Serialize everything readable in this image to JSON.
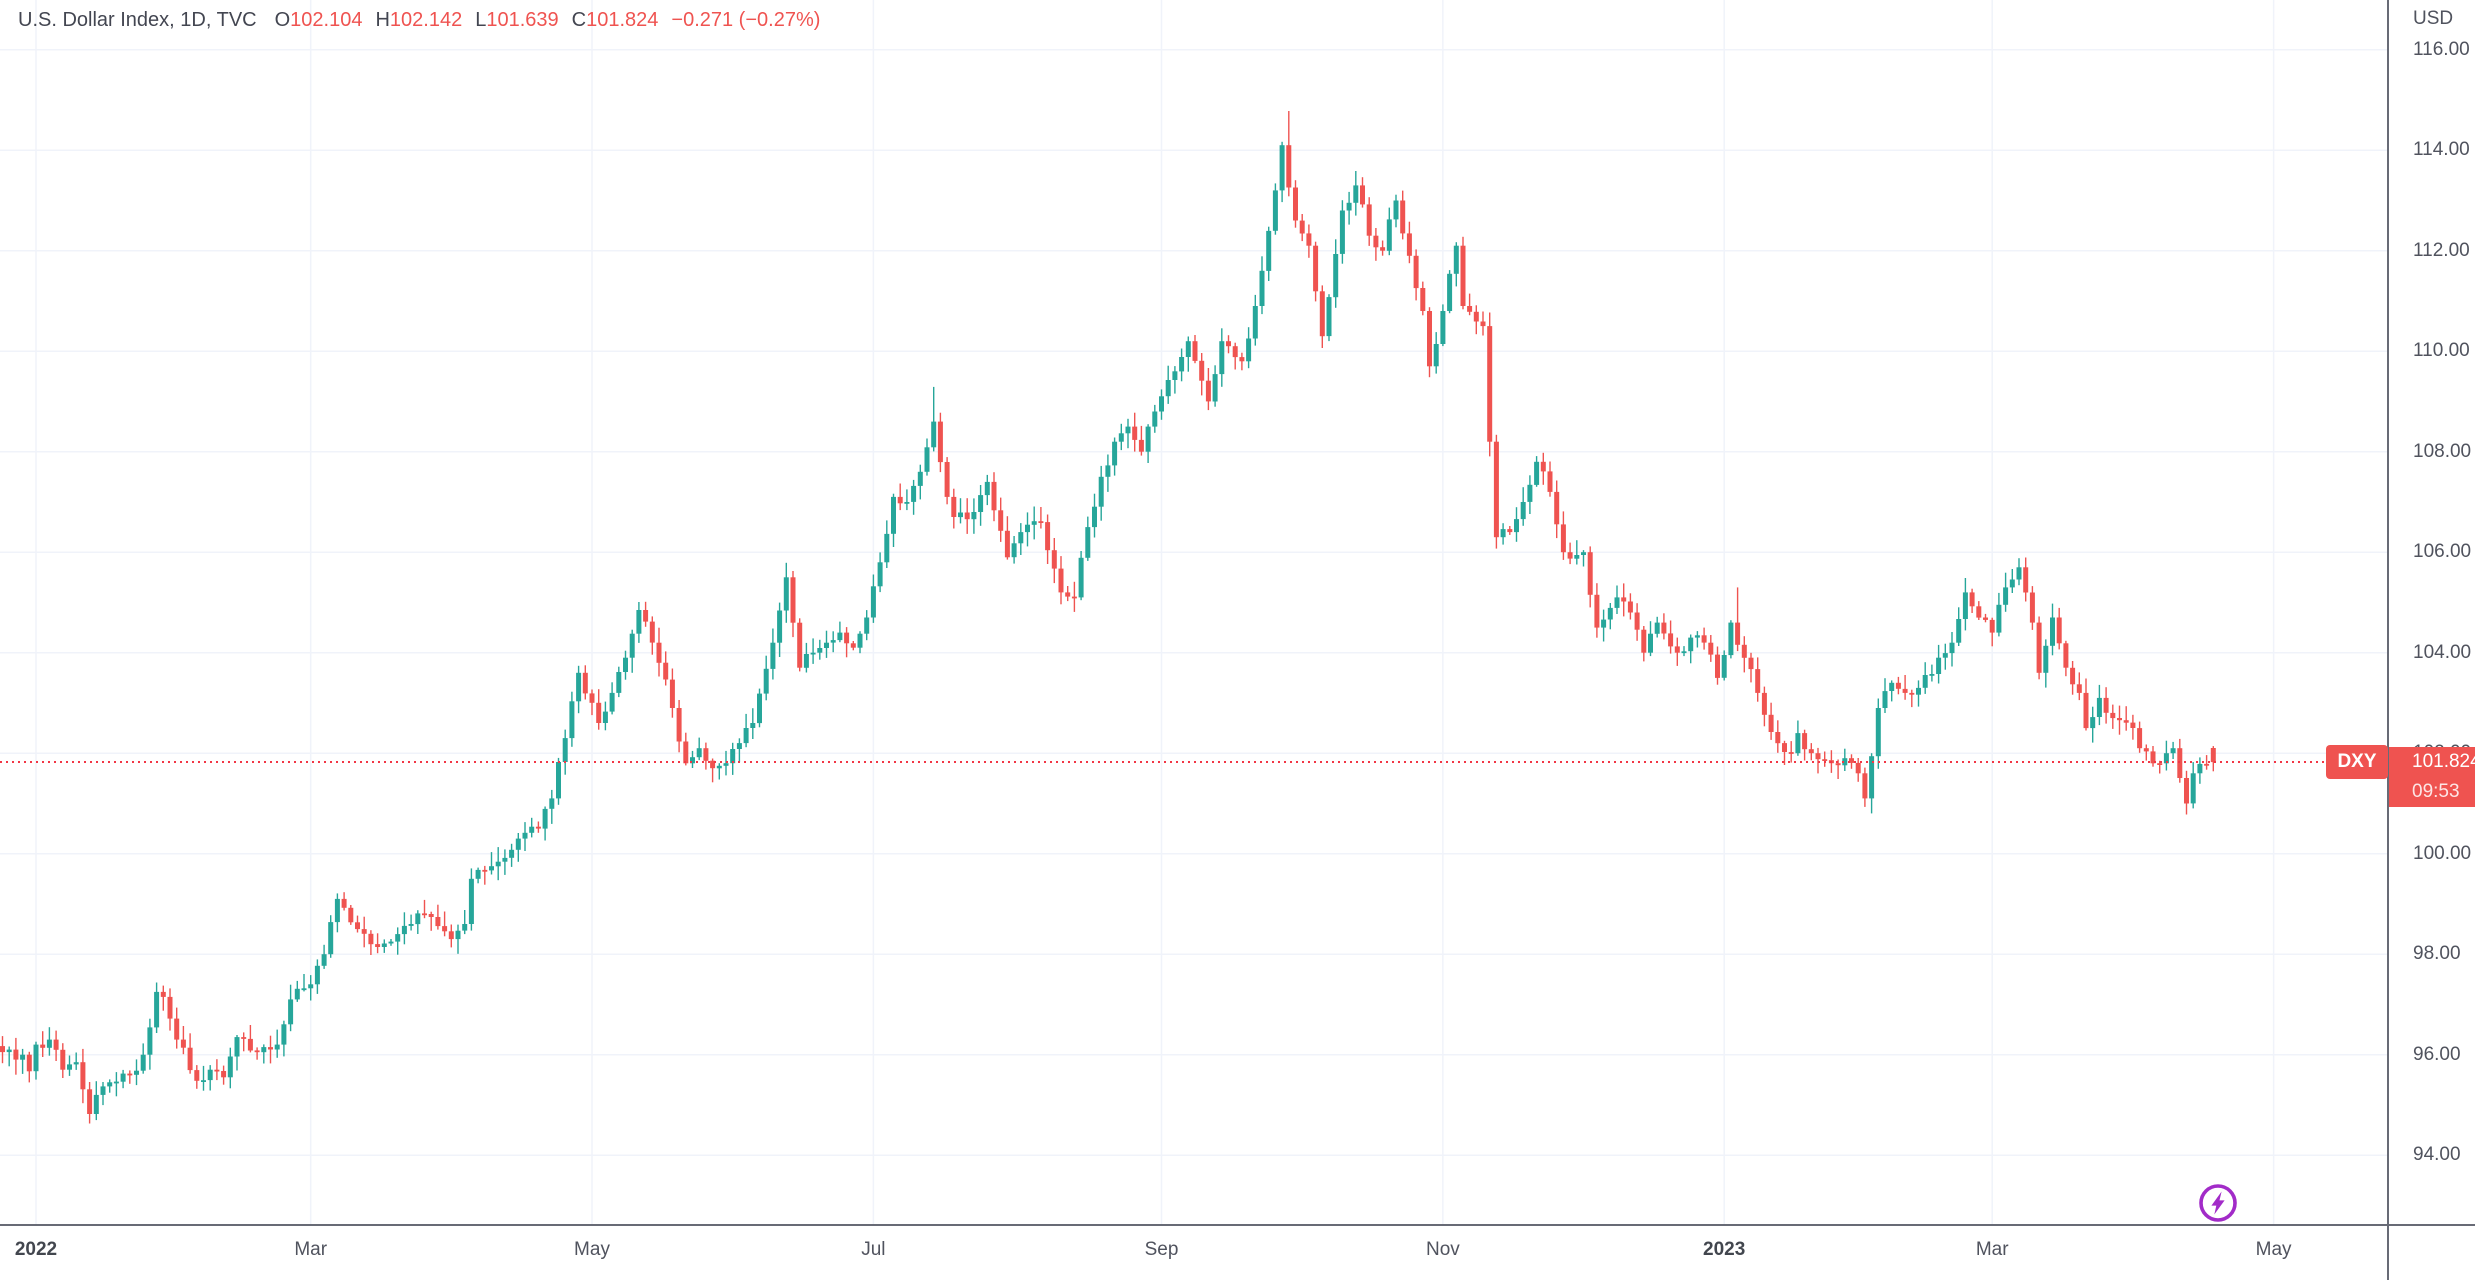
{
  "legend": {
    "title": "U.S. Dollar Index, 1D, TVC",
    "ohlc": [
      {
        "label": "O",
        "value": "102.104"
      },
      {
        "label": "H",
        "value": "102.142"
      },
      {
        "label": "L",
        "value": "101.639"
      },
      {
        "label": "C",
        "value": "101.824"
      }
    ],
    "change": "−0.271 (−0.27%)"
  },
  "price_axis": {
    "currency_label": "USD",
    "tick_values": [
      116,
      114,
      112,
      110,
      108,
      106,
      104,
      102,
      100,
      98,
      96,
      94
    ],
    "price_label": {
      "symbol": "DXY",
      "price": "101.824",
      "countdown": "09:53"
    }
  },
  "time_axis": {
    "ticks": [
      {
        "label": "2022",
        "day": 0,
        "bold": true
      },
      {
        "label": "Mar",
        "day": 41
      },
      {
        "label": "May",
        "day": 83
      },
      {
        "label": "Jul",
        "day": 125
      },
      {
        "label": "Sep",
        "day": 168
      },
      {
        "label": "Nov",
        "day": 210
      },
      {
        "label": "2023",
        "day": 252,
        "bold": true
      },
      {
        "label": "Mar",
        "day": 292
      },
      {
        "label": "May",
        "day": 334
      }
    ]
  },
  "chart_data": {
    "type": "candlestick",
    "title": "U.S. Dollar Index",
    "interval": "1D",
    "exchange": "TVC",
    "currency": "USD",
    "grid": true,
    "xlim": [
      -5.37,
      350.93
    ],
    "ylim": [
      92.63,
      116.99
    ],
    "grid_step_price": 2,
    "last_price_line": 101.824,
    "last_candle": {
      "day": 325,
      "open": 102.104,
      "high": 102.142,
      "low": 101.639,
      "close": 101.824
    },
    "close_anchors": [
      [
        -5,
        96.05
      ],
      [
        -4,
        96.1
      ],
      [
        -3,
        95.9
      ],
      [
        -2,
        96.0
      ],
      [
        -1,
        95.67
      ],
      [
        0,
        96.2
      ],
      [
        2,
        96.3
      ],
      [
        4,
        95.7
      ],
      [
        6,
        95.85
      ],
      [
        8,
        94.82
      ],
      [
        9,
        95.2
      ],
      [
        11,
        95.45
      ],
      [
        14,
        95.6
      ],
      [
        16,
        96.0
      ],
      [
        18,
        97.25
      ],
      [
        19,
        97.15
      ],
      [
        21,
        96.3
      ],
      [
        24,
        95.48
      ],
      [
        26,
        95.7
      ],
      [
        28,
        95.55
      ],
      [
        30,
        96.35
      ],
      [
        33,
        96.05
      ],
      [
        36,
        96.2
      ],
      [
        38,
        97.1
      ],
      [
        41,
        97.4
      ],
      [
        43,
        98.0
      ],
      [
        45,
        99.1
      ],
      [
        48,
        98.5
      ],
      [
        50,
        98.2
      ],
      [
        53,
        98.25
      ],
      [
        56,
        98.6
      ],
      [
        58,
        98.8
      ],
      [
        62,
        98.3
      ],
      [
        64,
        98.6
      ],
      [
        65,
        99.5
      ],
      [
        68,
        99.75
      ],
      [
        72,
        100.3
      ],
      [
        75,
        100.5
      ],
      [
        77,
        101.1
      ],
      [
        79,
        102.3
      ],
      [
        81,
        103.6
      ],
      [
        84,
        102.6
      ],
      [
        86,
        103.2
      ],
      [
        88,
        103.9
      ],
      [
        90,
        104.85
      ],
      [
        92,
        104.2
      ],
      [
        93,
        103.8
      ],
      [
        95,
        102.9
      ],
      [
        97,
        101.8
      ],
      [
        99,
        102.1
      ],
      [
        101,
        101.7
      ],
      [
        103,
        101.8
      ],
      [
        105,
        102.2
      ],
      [
        107,
        102.6
      ],
      [
        110,
        104.2
      ],
      [
        112,
        105.5
      ],
      [
        114,
        103.7
      ],
      [
        116,
        104.0
      ],
      [
        118,
        104.2
      ],
      [
        120,
        104.4
      ],
      [
        122,
        104.1
      ],
      [
        124,
        104.7
      ],
      [
        126,
        105.8
      ],
      [
        128,
        107.1
      ],
      [
        130,
        107.0
      ],
      [
        132,
        107.6
      ],
      [
        134,
        108.6
      ],
      [
        136,
        107.1
      ],
      [
        137,
        106.7
      ],
      [
        140,
        106.8
      ],
      [
        142,
        107.4
      ],
      [
        145,
        105.9
      ],
      [
        147,
        106.4
      ],
      [
        150,
        106.6
      ],
      [
        153,
        105.2
      ],
      [
        155,
        105.1
      ],
      [
        157,
        106.5
      ],
      [
        159,
        107.5
      ],
      [
        161,
        108.2
      ],
      [
        163,
        108.5
      ],
      [
        165,
        108.0
      ],
      [
        167,
        108.8
      ],
      [
        170,
        109.6
      ],
      [
        172,
        110.2
      ],
      [
        175,
        109.0
      ],
      [
        177,
        110.2
      ],
      [
        180,
        109.8
      ],
      [
        182,
        110.9
      ],
      [
        183,
        111.6
      ],
      [
        185,
        113.2
      ],
      [
        186,
        114.1
      ],
      [
        188,
        112.6
      ],
      [
        190,
        112.1
      ],
      [
        192,
        110.3
      ],
      [
        195,
        112.8
      ],
      [
        197,
        113.3
      ],
      [
        199,
        112.3
      ],
      [
        201,
        112.0
      ],
      [
        203,
        113.0
      ],
      [
        205,
        111.9
      ],
      [
        207,
        110.8
      ],
      [
        208,
        109.7
      ],
      [
        210,
        110.8
      ],
      [
        212,
        112.1
      ],
      [
        213,
        110.9
      ],
      [
        216,
        110.5
      ],
      [
        217,
        108.2
      ],
      [
        218,
        106.3
      ],
      [
        220,
        106.4
      ],
      [
        222,
        107.0
      ],
      [
        224,
        107.8
      ],
      [
        226,
        107.2
      ],
      [
        228,
        106.0
      ],
      [
        231,
        106.0
      ],
      [
        233,
        104.5
      ],
      [
        236,
        105.1
      ],
      [
        238,
        104.8
      ],
      [
        240,
        104.0
      ],
      [
        242,
        104.6
      ],
      [
        245,
        104.0
      ],
      [
        247,
        104.3
      ],
      [
        249,
        104.2
      ],
      [
        251,
        103.5
      ],
      [
        253,
        104.6
      ],
      [
        255,
        103.9
      ],
      [
        257,
        103.2
      ],
      [
        260,
        102.2
      ],
      [
        262,
        102.0
      ],
      [
        263,
        102.4
      ],
      [
        265,
        102.0
      ],
      [
        268,
        101.8
      ],
      [
        270,
        101.9
      ],
      [
        272,
        101.6
      ],
      [
        273,
        101.1
      ],
      [
        275,
        102.9
      ],
      [
        277,
        103.4
      ],
      [
        279,
        103.2
      ],
      [
        281,
        103.3
      ],
      [
        284,
        103.9
      ],
      [
        286,
        104.2
      ],
      [
        288,
        105.2
      ],
      [
        290,
        104.7
      ],
      [
        292,
        104.4
      ],
      [
        294,
        105.3
      ],
      [
        296,
        105.7
      ],
      [
        298,
        104.6
      ],
      [
        299,
        103.6
      ],
      [
        301,
        104.7
      ],
      [
        303,
        103.7
      ],
      [
        305,
        103.2
      ],
      [
        306,
        102.5
      ],
      [
        308,
        103.1
      ],
      [
        310,
        102.7
      ],
      [
        313,
        102.5
      ],
      [
        314,
        102.1
      ],
      [
        316,
        101.8
      ],
      [
        318,
        102.0
      ],
      [
        319,
        102.1
      ],
      [
        321,
        101.0
      ],
      [
        322,
        101.6
      ],
      [
        324,
        101.75
      ],
      [
        325,
        101.82
      ]
    ],
    "wick_overrides": {
      "8": {
        "low": 94.63
      },
      "90": {
        "high": 105.01
      },
      "112": {
        "high": 105.79
      },
      "134": {
        "high": 109.29
      },
      "187": {
        "high": 114.78
      },
      "254": {
        "high": 105.3
      },
      "296": {
        "high": 105.88
      },
      "321": {
        "low": 100.78
      }
    },
    "colors": {
      "up": "#26a69a",
      "down": "#ef5350",
      "price_line": "#f23645",
      "grid": "#f0f3fa",
      "axis_text": "#50535e",
      "axis_border": "#686b76",
      "label_bg": "#ef5350",
      "legend_text": "#434651"
    }
  },
  "overlay": {
    "flash_icon_color": "#a22bc8"
  }
}
